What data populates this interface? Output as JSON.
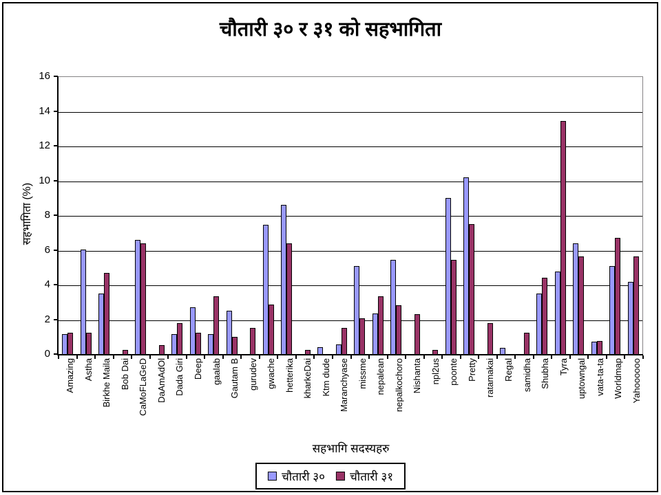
{
  "chart_data": {
    "type": "bar",
    "title": "चौतारी ३० र ३१ को सहभागिता",
    "xlabel": "सहभागि सदस्यहरु",
    "ylabel": "सहभागिता  (%)",
    "ylim": [
      0,
      16
    ],
    "ytick_step": 2,
    "grid": true,
    "legend_position": "bottom",
    "categories": [
      "Amazing",
      "Astha",
      "Birkhe Maila",
      "Bob Dai",
      "CaMoFLaGeD",
      "DaAmAdOl",
      "Dada Giri",
      "Deep",
      "gaalab",
      "Gautam B",
      "gurudev",
      "gwache",
      "hetterika",
      "kharkeDai",
      "Ktm dude",
      "Maranchyase",
      "missme",
      "nepalean",
      "nepalkochoro",
      "Nishanta",
      "npl2us",
      "poonte",
      "Pretty",
      "ratamakai",
      "Regal",
      "samidha",
      "Shubha",
      "Tyra",
      "uptowngal",
      "vata-ta-ta",
      "Worldmap",
      "Yahoooooo"
    ],
    "series": [
      {
        "name": "चौतारी ३०",
        "color": "#9999FF",
        "values": [
          1.15,
          6.05,
          3.5,
          0,
          6.6,
          0,
          1.15,
          2.7,
          1.15,
          2.5,
          0,
          7.45,
          8.6,
          0,
          0.4,
          0.55,
          5.1,
          2.35,
          5.45,
          0,
          0,
          9.0,
          10.2,
          0,
          0.35,
          0,
          3.5,
          4.75,
          6.4,
          0.7,
          5.1,
          4.15
        ]
      },
      {
        "name": "चौतारी ३१",
        "color": "#993366",
        "values": [
          1.25,
          1.25,
          4.7,
          0.25,
          6.4,
          0.5,
          1.8,
          1.25,
          3.35,
          1.0,
          1.5,
          2.85,
          6.4,
          0.25,
          0,
          1.5,
          2.05,
          3.35,
          2.8,
          2.3,
          0.25,
          5.45,
          7.5,
          1.8,
          0,
          1.25,
          4.4,
          13.45,
          5.65,
          0.75,
          6.7,
          5.65
        ]
      }
    ]
  }
}
